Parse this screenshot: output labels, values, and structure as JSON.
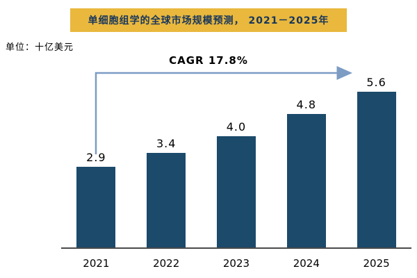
{
  "title": "单细胞组学的全球市场规模预测， 2021－2025年",
  "unit_label": "单位：十亿美元",
  "cagr_label": "CAGR 17.8%",
  "colors": {
    "banner_bg": "#E9B83D",
    "title_text": "#17365D",
    "bar": "#1B4A6B",
    "arrow": "#7C9CC4",
    "axis": "#4a4a4a"
  },
  "chart_data": {
    "type": "bar",
    "categories": [
      "2021",
      "2022",
      "2023",
      "2024",
      "2025"
    ],
    "values": [
      2.9,
      3.4,
      4.0,
      4.8,
      5.6
    ],
    "value_labels": [
      "2.9",
      "3.4",
      "4.0",
      "4.8",
      "5.6"
    ],
    "title": "单细胞组学的全球市场规模预测， 2021－2025年",
    "xlabel": "",
    "ylabel": "十亿美元",
    "ylim": [
      0,
      6
    ],
    "grid": false,
    "legend": false,
    "annotation": "CAGR 17.8%"
  }
}
